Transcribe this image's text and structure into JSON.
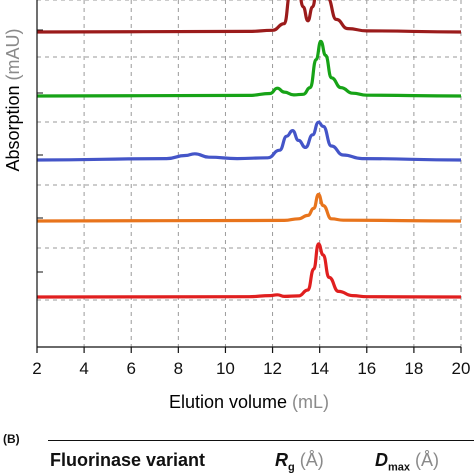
{
  "chart_data": {
    "type": "line",
    "xlabel": "Elution volume",
    "xlabel_unit": "(mL)",
    "ylabel": "Absorption",
    "ylabel_unit": "(mAU)",
    "xlim": [
      2,
      20
    ],
    "xticks": [
      2,
      4,
      6,
      8,
      10,
      12,
      14,
      16,
      18,
      20
    ],
    "grid": true,
    "stacked": true,
    "series": [
      {
        "color": "#9b1b1b",
        "points": [
          [
            2,
            0
          ],
          [
            11,
            0.02
          ],
          [
            12,
            0.06
          ],
          [
            12.5,
            0.3
          ],
          [
            12.75,
            1.4
          ],
          [
            13.05,
            1.9
          ],
          [
            13.3,
            0.9
          ],
          [
            13.5,
            0.4
          ],
          [
            13.7,
            0.9
          ],
          [
            13.9,
            1.7
          ],
          [
            14.1,
            1.9
          ],
          [
            14.35,
            1.2
          ],
          [
            14.7,
            0.45
          ],
          [
            15.2,
            0.12
          ],
          [
            16,
            0.04
          ],
          [
            20,
            0
          ]
        ]
      },
      {
        "color": "#17a317",
        "points": [
          [
            2,
            0
          ],
          [
            11,
            0.02
          ],
          [
            11.9,
            0.09
          ],
          [
            12.2,
            0.28
          ],
          [
            12.5,
            0.14
          ],
          [
            12.9,
            0.04
          ],
          [
            13.3,
            0.06
          ],
          [
            13.6,
            0.3
          ],
          [
            13.85,
            1.3
          ],
          [
            14.05,
            1.95
          ],
          [
            14.25,
            1.45
          ],
          [
            14.5,
            0.65
          ],
          [
            14.9,
            0.3
          ],
          [
            15.4,
            0.1
          ],
          [
            16,
            0.03
          ],
          [
            20,
            0
          ]
        ]
      },
      {
        "color": "#4455c8",
        "points": [
          [
            2,
            0
          ],
          [
            7.5,
            0.05
          ],
          [
            8.3,
            0.16
          ],
          [
            8.7,
            0.22
          ],
          [
            9.3,
            0.1
          ],
          [
            10.5,
            0.05
          ],
          [
            11.8,
            0.08
          ],
          [
            12.3,
            0.35
          ],
          [
            12.6,
            0.85
          ],
          [
            12.85,
            1.05
          ],
          [
            13.1,
            0.7
          ],
          [
            13.4,
            0.45
          ],
          [
            13.7,
            0.9
          ],
          [
            13.95,
            1.35
          ],
          [
            14.15,
            1.2
          ],
          [
            14.5,
            0.5
          ],
          [
            15,
            0.18
          ],
          [
            15.8,
            0.05
          ],
          [
            20,
            0
          ]
        ]
      },
      {
        "color": "#e8741c",
        "points": [
          [
            2,
            0
          ],
          [
            12.5,
            0.02
          ],
          [
            13.1,
            0.08
          ],
          [
            13.5,
            0.2
          ],
          [
            13.75,
            0.45
          ],
          [
            13.95,
            0.95
          ],
          [
            14.15,
            0.55
          ],
          [
            14.5,
            0.08
          ],
          [
            15,
            0.03
          ],
          [
            20,
            0
          ]
        ]
      },
      {
        "color": "#e01f1f",
        "points": [
          [
            2,
            0
          ],
          [
            11,
            0.01
          ],
          [
            11.9,
            0.05
          ],
          [
            12.2,
            0.08
          ],
          [
            12.5,
            0.02
          ],
          [
            13.1,
            0.04
          ],
          [
            13.5,
            0.25
          ],
          [
            13.75,
            1.0
          ],
          [
            13.95,
            1.9
          ],
          [
            14.15,
            1.5
          ],
          [
            14.4,
            0.7
          ],
          [
            14.8,
            0.2
          ],
          [
            15.4,
            0.05
          ],
          [
            16,
            0.01
          ],
          [
            20,
            0
          ]
        ]
      }
    ]
  },
  "panel_b": {
    "label": "(B)",
    "headers": {
      "variant": "Fluorinase variant",
      "rg": "R",
      "rg_sub": "g",
      "rg_unit": "(Å)",
      "dmax": "D",
      "dmax_sub": "max",
      "dmax_unit": "(Å)"
    }
  }
}
